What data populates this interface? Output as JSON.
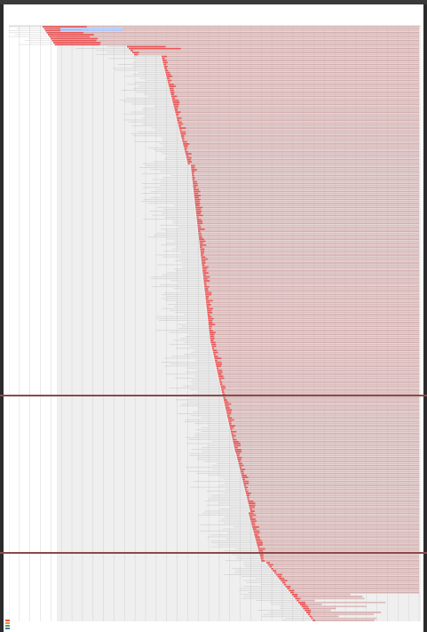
{
  "header": {
    "line1": "",
    "line2": "",
    "line3": ""
  },
  "chart_data": {
    "type": "waterfall",
    "row_count": 300,
    "time_ticks": [
      "",
      "",
      "",
      "",
      "",
      "",
      "",
      "",
      "",
      "",
      "",
      "",
      "",
      "",
      "",
      "",
      "",
      "",
      "",
      "",
      "",
      "",
      "",
      "",
      "",
      "",
      "",
      "",
      "",
      "",
      "",
      "",
      "",
      "",
      "",
      "",
      "",
      "",
      "",
      ""
    ],
    "colors": {
      "page_bg": "#ffffff",
      "grid": "#cccccc",
      "timeline_shade": "#efefef",
      "request_fill": "#d9b3b3",
      "request_alt": "#cfa3a3",
      "ttfb": "#e85555",
      "highlight": "#a8c8ff",
      "separator": "#8a4a4a"
    }
  },
  "legend": [
    {
      "label": "",
      "color": "#e85555"
    },
    {
      "label": "",
      "color": "#f28e2b"
    },
    {
      "label": "",
      "color": "#59a14f"
    },
    {
      "label": "",
      "color": "#76b7b2"
    },
    {
      "label": "",
      "color": "#4e79a7"
    }
  ]
}
